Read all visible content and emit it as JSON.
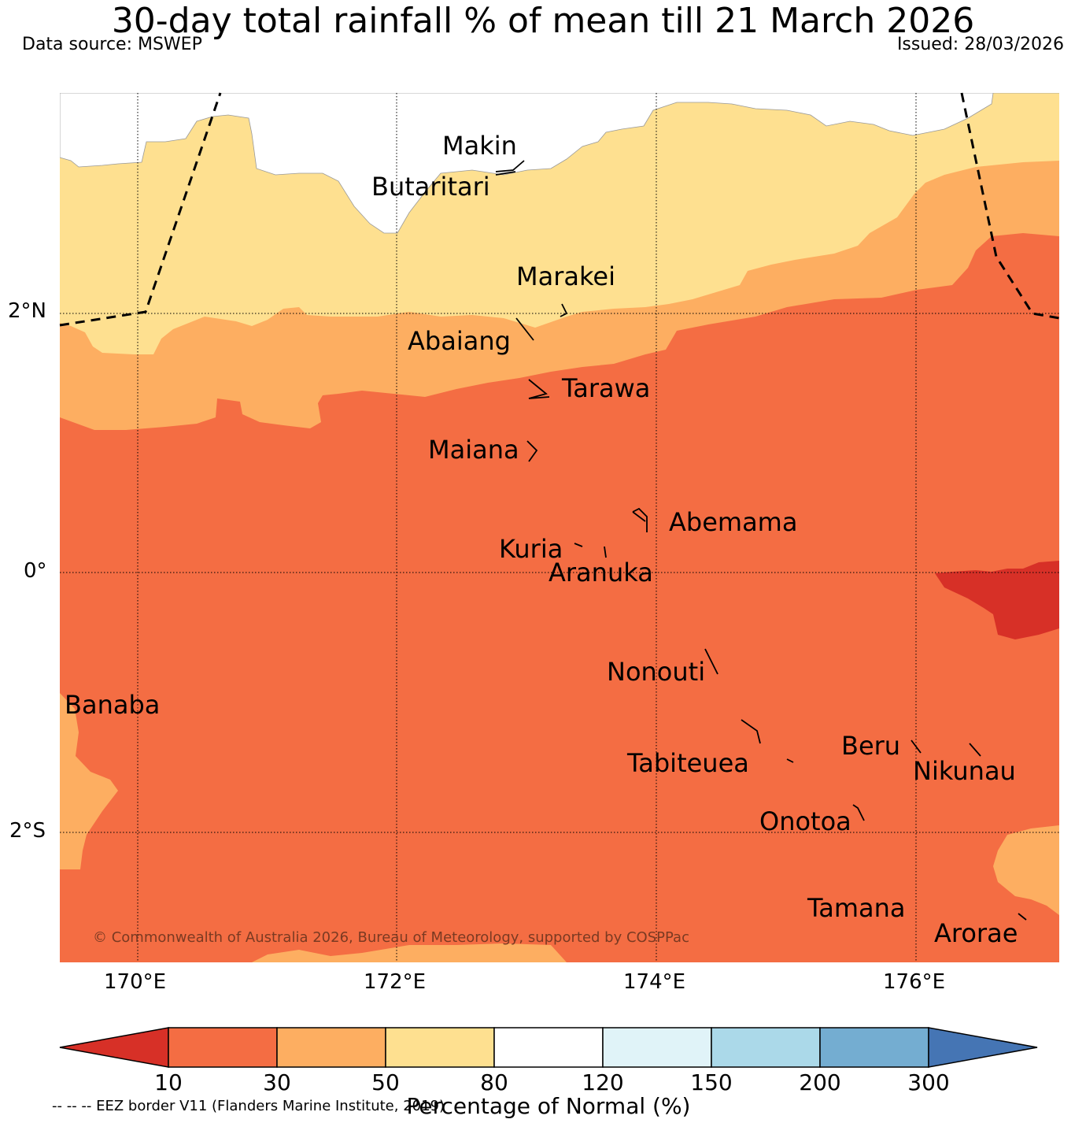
{
  "header": {
    "title": "30-day total rainfall % of mean till 21 March 2026",
    "data_source": "Data source: MSWEP",
    "issued": "Issued: 28/03/2026"
  },
  "axes": {
    "latitudes": [
      "2°N",
      "0°",
      "2°S"
    ],
    "longitudes": [
      "170°E",
      "172°E",
      "174°E",
      "176°E"
    ]
  },
  "islands": {
    "makin": "Makin",
    "butaritari": "Butaritari",
    "marakei": "Marakei",
    "abaiang": "Abaiang",
    "tarawa": "Tarawa",
    "maiana": "Maiana",
    "abemama": "Abemama",
    "kuria": "Kuria",
    "aranuka": "Aranuka",
    "nonouti": "Nonouti",
    "banaba": "Banaba",
    "beru": "Beru",
    "nikunau": "Nikunau",
    "tabiteuea": "Tabiteuea",
    "onotoa": "Onotoa",
    "tamana": "Tamana",
    "arorae": "Arorae"
  },
  "copyright": "© Commonwealth of Australia 2026, Bureau of Meteorology, supported by COSPPac",
  "colorbar": {
    "ticks": [
      "10",
      "30",
      "50",
      "80",
      "120",
      "150",
      "200",
      "300"
    ],
    "label": "Percentage of Normal (%)",
    "colors": [
      "#d73027",
      "#f46d43",
      "#fdae61",
      "#fee090",
      "#ffffff",
      "#e0f3f8",
      "#abd9e9",
      "#74add1",
      "#4575b4"
    ]
  },
  "legend": {
    "eez_note": "-- -- -- EEZ border V11 (Flanders Marine Institute, 2019)"
  }
}
